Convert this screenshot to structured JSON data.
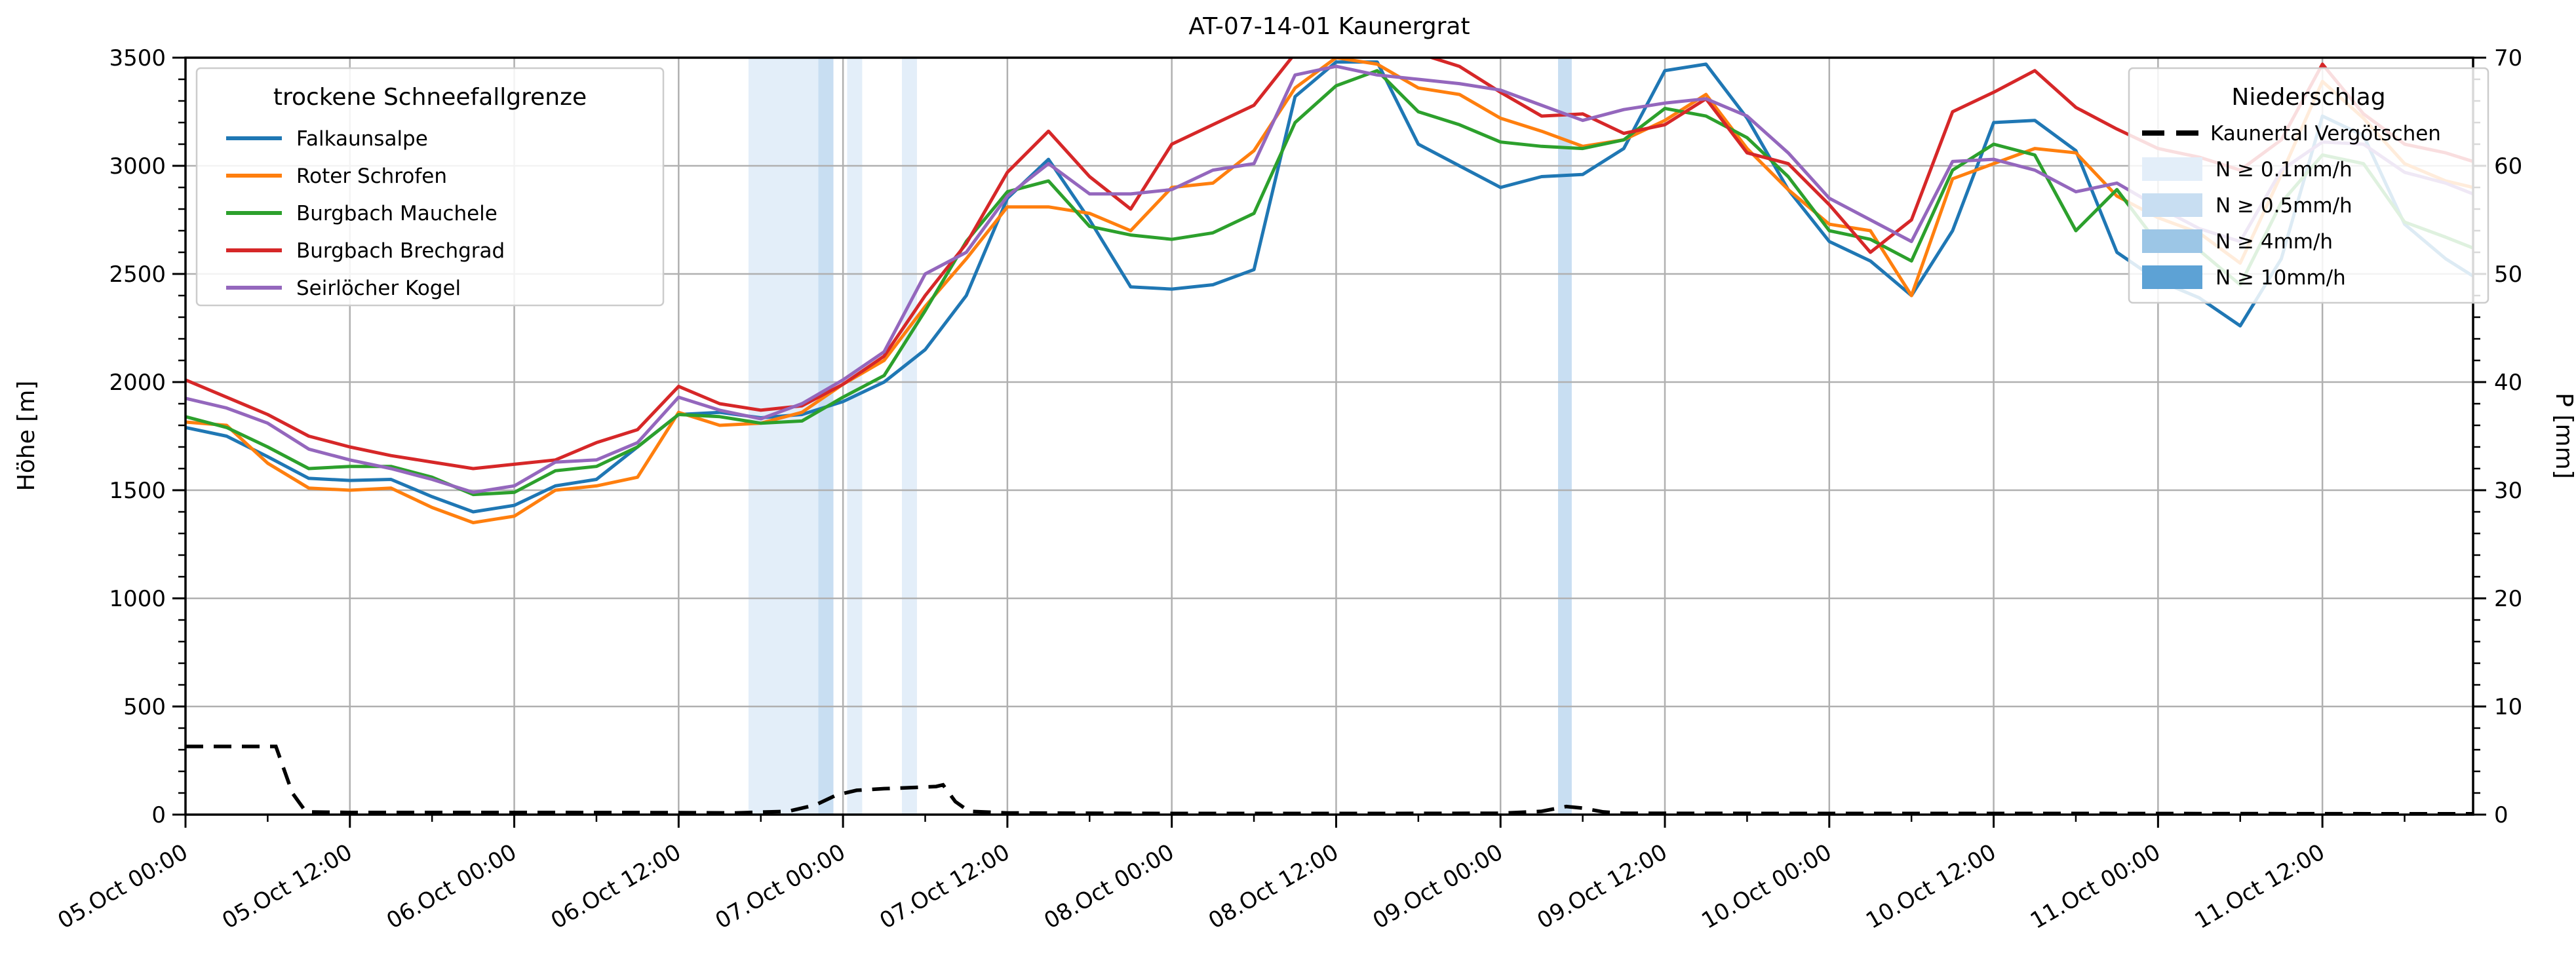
{
  "title": "AT-07-14-01 Kaunergrat",
  "axes": {
    "left_label": "Höhe [m]",
    "right_label": "P [mm]",
    "left_range": [
      0,
      3500
    ],
    "left_major_step": 500,
    "left_minor_step": 100,
    "right_range": [
      0,
      70
    ],
    "right_major_step": 10,
    "right_minor_step": 2,
    "x_range_hours": [
      0,
      167
    ],
    "x_major_step_hours": 12,
    "x_minor_step_hours": 6,
    "x_tick_hours": [
      0,
      12,
      24,
      36,
      48,
      60,
      72,
      84,
      96,
      108,
      120,
      132,
      144,
      156
    ],
    "x_tick_labels": [
      "05.Oct 00:00",
      "05.Oct 12:00",
      "06.Oct 00:00",
      "06.Oct 12:00",
      "07.Oct 00:00",
      "07.Oct 12:00",
      "08.Oct 00:00",
      "08.Oct 12:00",
      "09.Oct 00:00",
      "09.Oct 12:00",
      "10.Oct 00:00",
      "10.Oct 12:00",
      "11.Oct 00:00",
      "11.Oct 12:00"
    ]
  },
  "legend_left": {
    "title": "trockene Schneefallgrenze"
  },
  "legend_right": {
    "title": "Niederschlag",
    "dashed_label": "Kaunertal Vergötschen",
    "band_items": [
      {
        "label": "N ≥ 0.1mm/h",
        "level": "0.1"
      },
      {
        "label": "N ≥ 0.5mm/h",
        "level": "0.5"
      },
      {
        "label": "N ≥ 4mm/h",
        "level": "4"
      },
      {
        "label": "N ≥ 10mm/h",
        "level": "10"
      }
    ]
  },
  "chart_data": {
    "type": "line",
    "title": "AT-07-14-01 Kaunergrat",
    "xlabel": "",
    "ylabel_left": "Höhe [m]",
    "ylabel_right": "P [mm]",
    "ylim_left": [
      0,
      3500
    ],
    "ylim_right": [
      0,
      70
    ],
    "x_unit": "hours since 05.Oct 00:00",
    "x_hours": [
      0,
      3,
      6,
      9,
      12,
      15,
      18,
      21,
      24,
      27,
      30,
      33,
      36,
      39,
      42,
      45,
      48,
      51,
      54,
      57,
      60,
      63,
      66,
      69,
      72,
      75,
      78,
      81,
      84,
      87,
      90,
      93,
      96,
      99,
      102,
      105,
      108,
      111,
      114,
      117,
      120,
      123,
      126,
      129,
      132,
      135,
      138,
      141,
      144,
      147,
      150,
      153,
      156,
      159,
      162,
      165,
      167
    ],
    "series": [
      {
        "name": "Falkaunsalpe",
        "color": "#1f77b4",
        "values": [
          1790,
          1750,
          1655,
          1555,
          1545,
          1550,
          1470,
          1400,
          1430,
          1520,
          1550,
          1700,
          1850,
          1860,
          1835,
          1850,
          1910,
          2000,
          2150,
          2400,
          2850,
          3030,
          2750,
          2440,
          2430,
          2450,
          2520,
          3320,
          3480,
          3480,
          3100,
          3000,
          2900,
          2950,
          2960,
          3080,
          3440,
          3470,
          3220,
          2890,
          2650,
          2560,
          2400,
          2700,
          3200,
          3210,
          3070,
          2600,
          2470,
          2390,
          2260,
          2570,
          3230,
          3140,
          2730,
          2570,
          2490
        ]
      },
      {
        "name": "Roter Schrofen",
        "color": "#ff7f0e",
        "values": [
          1815,
          1800,
          1625,
          1510,
          1500,
          1510,
          1420,
          1350,
          1380,
          1500,
          1520,
          1560,
          1860,
          1800,
          1810,
          1860,
          1990,
          2100,
          2350,
          2570,
          2810,
          2810,
          2780,
          2700,
          2900,
          2920,
          3070,
          3360,
          3500,
          3470,
          3360,
          3330,
          3220,
          3160,
          3090,
          3120,
          3210,
          3330,
          3080,
          2890,
          2730,
          2700,
          2400,
          2940,
          3010,
          3080,
          3060,
          2860,
          2760,
          2690,
          2550,
          2960,
          3390,
          3220,
          3010,
          2930,
          2900
        ]
      },
      {
        "name": "Burgbach Mauchele",
        "color": "#2ca02c",
        "values": [
          1840,
          1790,
          1700,
          1600,
          1610,
          1610,
          1560,
          1480,
          1490,
          1590,
          1610,
          1700,
          1850,
          1840,
          1810,
          1820,
          1930,
          2030,
          2330,
          2650,
          2880,
          2930,
          2720,
          2680,
          2660,
          2690,
          2780,
          3200,
          3370,
          3440,
          3250,
          3190,
          3110,
          3090,
          3080,
          3120,
          3265,
          3230,
          3130,
          2950,
          2700,
          2660,
          2560,
          2980,
          3100,
          3050,
          2700,
          2890,
          2640,
          2610,
          2450,
          2830,
          3050,
          3010,
          2740,
          2670,
          2620
        ]
      },
      {
        "name": "Burgbach Brechgrad",
        "color": "#d62728",
        "values": [
          2010,
          1930,
          1850,
          1750,
          1700,
          1660,
          1630,
          1600,
          1620,
          1640,
          1720,
          1780,
          1980,
          1900,
          1870,
          1890,
          1990,
          2120,
          2400,
          2640,
          2970,
          3160,
          2950,
          2800,
          3100,
          3190,
          3280,
          3520,
          3520,
          3520,
          3520,
          3460,
          3340,
          3230,
          3240,
          3150,
          3190,
          3310,
          3060,
          3010,
          2820,
          2600,
          2750,
          3250,
          3340,
          3440,
          3270,
          3170,
          3080,
          3040,
          2980,
          3120,
          3470,
          3240,
          3100,
          3060,
          3020
        ]
      },
      {
        "name": "Seirlöcher Kogel",
        "color": "#9467bd",
        "values": [
          1925,
          1880,
          1810,
          1690,
          1640,
          1600,
          1550,
          1490,
          1520,
          1630,
          1640,
          1720,
          1930,
          1870,
          1830,
          1900,
          2010,
          2140,
          2500,
          2600,
          2860,
          3010,
          2870,
          2870,
          2890,
          2980,
          3010,
          3420,
          3460,
          3420,
          3400,
          3380,
          3350,
          3280,
          3210,
          3260,
          3290,
          3310,
          3230,
          3060,
          2850,
          2750,
          2650,
          3020,
          3030,
          2980,
          2880,
          2920,
          2810,
          2710,
          2650,
          2980,
          3110,
          3100,
          2970,
          2920,
          2870
        ]
      }
    ],
    "precip_line": {
      "name": "Kaunertal Vergötschen",
      "color": "#000000",
      "style": "dashed",
      "axis": "right",
      "hours": [
        0,
        6.6,
        7.8,
        8.8,
        12,
        24,
        36,
        40,
        44,
        46,
        47.5,
        49,
        51,
        53,
        54.8,
        55.3,
        56.2,
        57.2,
        60,
        72,
        84,
        96,
        99,
        100,
        100.8,
        102,
        103.5,
        105,
        120,
        140,
        160,
        167
      ],
      "mm": [
        6.3,
        6.3,
        2.0,
        0.25,
        0.2,
        0.2,
        0.18,
        0.15,
        0.3,
        0.9,
        1.8,
        2.25,
        2.4,
        2.5,
        2.6,
        2.75,
        1.2,
        0.3,
        0.15,
        0.1,
        0.1,
        0.12,
        0.3,
        0.55,
        0.75,
        0.6,
        0.25,
        0.12,
        0.1,
        0.1,
        0.08,
        0.08
      ]
    },
    "precip_bands": [
      {
        "from_hour": 41.1,
        "to_hour": 46.2,
        "level": "0.1"
      },
      {
        "from_hour": 46.2,
        "to_hour": 47.3,
        "level": "0.5"
      },
      {
        "from_hour": 48.3,
        "to_hour": 49.4,
        "level": "0.1"
      },
      {
        "from_hour": 52.3,
        "to_hour": 53.4,
        "level": "0.1"
      },
      {
        "from_hour": 100.2,
        "to_hour": 101.2,
        "level": "0.5"
      }
    ],
    "band_colors": {
      "0.1": "#e3eef9",
      "0.5": "#c8def2",
      "4": "#9cc6e6",
      "10": "#5da2d5"
    },
    "grid": true,
    "grid_color": "#b0b0b0",
    "legend_positions": {
      "snowline": "upper left",
      "precip": "upper right"
    }
  }
}
